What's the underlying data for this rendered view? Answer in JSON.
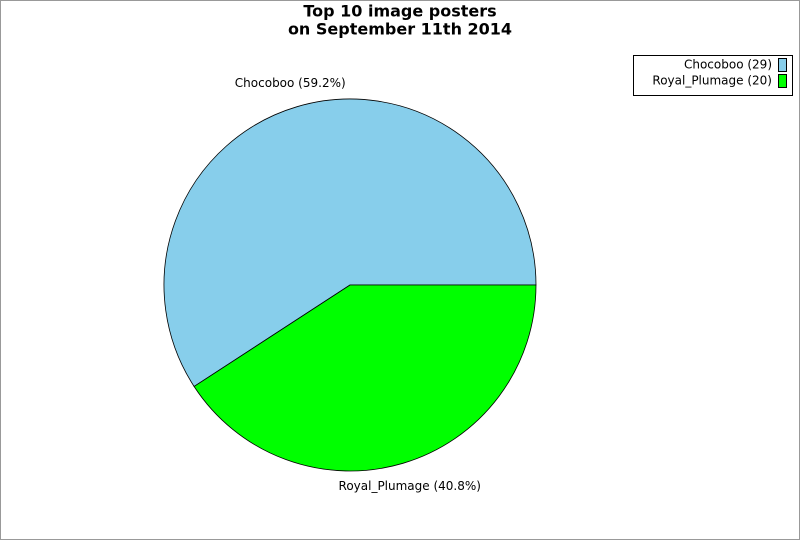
{
  "chart_data": {
    "type": "pie",
    "title": [
      "Top 10 image posters",
      "on September 11th 2014"
    ],
    "categories": [
      "Chocoboo",
      "Royal_Plumage"
    ],
    "values": [
      29,
      20
    ],
    "value_labels": [
      "Chocoboo (59.2%)",
      "Royal_Plumage (40.8%)"
    ],
    "legend_labels": [
      "Chocoboo (29)",
      "Royal_Plumage (20)"
    ],
    "colors": [
      "#87ceeb",
      "#00ff00"
    ],
    "legend": "top-right"
  }
}
